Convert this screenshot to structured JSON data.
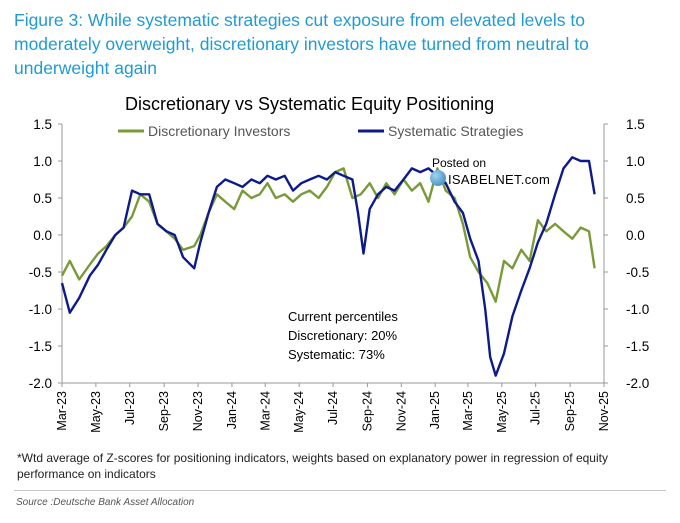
{
  "header": {
    "figure_title": "Figure 3: While systematic strategies cut exposure from elevated levels to moderately overweight, discretionary investors have turned from neutral to underweight again"
  },
  "watermark": {
    "posted": "Posted on",
    "brand": "ISABELNET.com"
  },
  "annotation": {
    "line1": "Current percentiles",
    "line2": "Discretionary: 20%",
    "line3": "Systematic: 73%"
  },
  "footnote": "*Wtd average of Z-scores for positioning indicators, weights based on explanatory power in regression of equity performance on indicators",
  "source": "Source :Deutsche Bank Asset Allocation",
  "colors": {
    "discretionary": "#7a9a3a",
    "systematic": "#0d1a8c",
    "title_blue": "#1f9bd3"
  },
  "chart_data": {
    "type": "line",
    "title": "Discretionary  vs Systematic Equity Positioning",
    "ylim": [
      -2.0,
      1.5
    ],
    "yticks": [
      "1.5",
      "1.0",
      "0.5",
      "0.0",
      "-0.5",
      "-1.0",
      "-1.5",
      "-2.0"
    ],
    "x_range": [
      "2023-03",
      "2025-11"
    ],
    "xtick_labels": [
      "Mar-23",
      "May-23",
      "Jul-23",
      "Sep-23",
      "Nov-23",
      "Jan-24",
      "Mar-24",
      "May-24",
      "Jul-24",
      "Sep-24",
      "Nov-24",
      "Jan-25",
      "Mar-25",
      "May-25",
      "Jul-25",
      "Sep-25",
      "Nov-25"
    ],
    "legend": "top",
    "grid": false,
    "series": [
      {
        "name": "Discretionary Investors",
        "x": [
          "2023-03-01",
          "2023-03-15",
          "2023-04-01",
          "2023-04-20",
          "2023-05-05",
          "2023-05-20",
          "2023-06-05",
          "2023-06-20",
          "2023-07-05",
          "2023-07-20",
          "2023-08-05",
          "2023-08-20",
          "2023-09-05",
          "2023-09-20",
          "2023-10-05",
          "2023-10-25",
          "2023-11-05",
          "2023-11-20",
          "2023-12-05",
          "2023-12-20",
          "2024-01-05",
          "2024-01-20",
          "2024-02-05",
          "2024-02-20",
          "2024-03-05",
          "2024-03-20",
          "2024-04-05",
          "2024-04-20",
          "2024-05-05",
          "2024-05-20",
          "2024-06-05",
          "2024-06-20",
          "2024-07-05",
          "2024-07-20",
          "2024-08-05",
          "2024-08-20",
          "2024-09-05",
          "2024-09-20",
          "2024-10-05",
          "2024-10-20",
          "2024-11-05",
          "2024-11-20",
          "2024-12-05",
          "2024-12-20",
          "2025-01-05",
          "2025-01-20",
          "2025-02-05",
          "2025-02-20",
          "2025-03-05",
          "2025-03-20",
          "2025-04-05",
          "2025-04-20",
          "2025-05-05",
          "2025-05-20",
          "2025-06-05",
          "2025-06-20",
          "2025-07-05",
          "2025-07-20",
          "2025-08-05",
          "2025-08-20",
          "2025-09-05",
          "2025-09-20",
          "2025-10-05",
          "2025-10-15"
        ],
        "values": [
          -0.55,
          -0.35,
          -0.6,
          -0.4,
          -0.25,
          -0.15,
          0.0,
          0.1,
          0.25,
          0.55,
          0.45,
          0.15,
          0.05,
          -0.05,
          -0.2,
          -0.15,
          0.0,
          0.3,
          0.55,
          0.45,
          0.35,
          0.6,
          0.5,
          0.55,
          0.7,
          0.5,
          0.55,
          0.45,
          0.55,
          0.6,
          0.5,
          0.65,
          0.85,
          0.9,
          0.5,
          0.55,
          0.7,
          0.5,
          0.7,
          0.55,
          0.75,
          0.6,
          0.7,
          0.45,
          0.9,
          0.6,
          0.5,
          0.15,
          -0.3,
          -0.5,
          -0.65,
          -0.9,
          -0.35,
          -0.45,
          -0.2,
          -0.35,
          0.2,
          0.05,
          0.15,
          0.05,
          -0.05,
          0.1,
          0.05,
          -0.45
        ]
      },
      {
        "name": "Systematic Strategies",
        "x": [
          "2023-03-01",
          "2023-03-15",
          "2023-04-01",
          "2023-04-20",
          "2023-05-05",
          "2023-05-20",
          "2023-06-05",
          "2023-06-20",
          "2023-07-05",
          "2023-07-20",
          "2023-08-05",
          "2023-08-20",
          "2023-09-05",
          "2023-09-20",
          "2023-10-05",
          "2023-10-25",
          "2023-11-05",
          "2023-11-20",
          "2023-12-05",
          "2023-12-20",
          "2024-01-05",
          "2024-01-20",
          "2024-02-05",
          "2024-02-20",
          "2024-03-05",
          "2024-03-20",
          "2024-04-05",
          "2024-04-20",
          "2024-05-05",
          "2024-05-20",
          "2024-06-05",
          "2024-06-20",
          "2024-07-05",
          "2024-07-20",
          "2024-08-05",
          "2024-08-15",
          "2024-08-25",
          "2024-09-05",
          "2024-09-20",
          "2024-10-05",
          "2024-10-20",
          "2024-11-05",
          "2024-11-20",
          "2024-12-05",
          "2024-12-20",
          "2025-01-05",
          "2025-01-20",
          "2025-02-05",
          "2025-02-20",
          "2025-03-05",
          "2025-03-20",
          "2025-04-01",
          "2025-04-10",
          "2025-04-20",
          "2025-05-05",
          "2025-05-20",
          "2025-06-05",
          "2025-06-20",
          "2025-07-05",
          "2025-07-20",
          "2025-08-05",
          "2025-08-20",
          "2025-09-05",
          "2025-09-20",
          "2025-10-05",
          "2025-10-15"
        ],
        "values": [
          -0.65,
          -1.05,
          -0.85,
          -0.55,
          -0.4,
          -0.2,
          0.0,
          0.1,
          0.6,
          0.55,
          0.55,
          0.15,
          0.05,
          0.0,
          -0.3,
          -0.45,
          -0.1,
          0.3,
          0.65,
          0.75,
          0.7,
          0.65,
          0.75,
          0.7,
          0.8,
          0.75,
          0.8,
          0.6,
          0.7,
          0.75,
          0.8,
          0.75,
          0.85,
          0.8,
          0.75,
          0.3,
          -0.25,
          0.35,
          0.55,
          0.65,
          0.6,
          0.75,
          0.9,
          0.85,
          0.9,
          0.8,
          0.7,
          0.45,
          0.3,
          -0.05,
          -0.35,
          -1.0,
          -1.65,
          -1.9,
          -1.6,
          -1.1,
          -0.75,
          -0.45,
          -0.1,
          0.15,
          0.55,
          0.9,
          1.05,
          1.0,
          1.0,
          0.55
        ]
      }
    ]
  }
}
